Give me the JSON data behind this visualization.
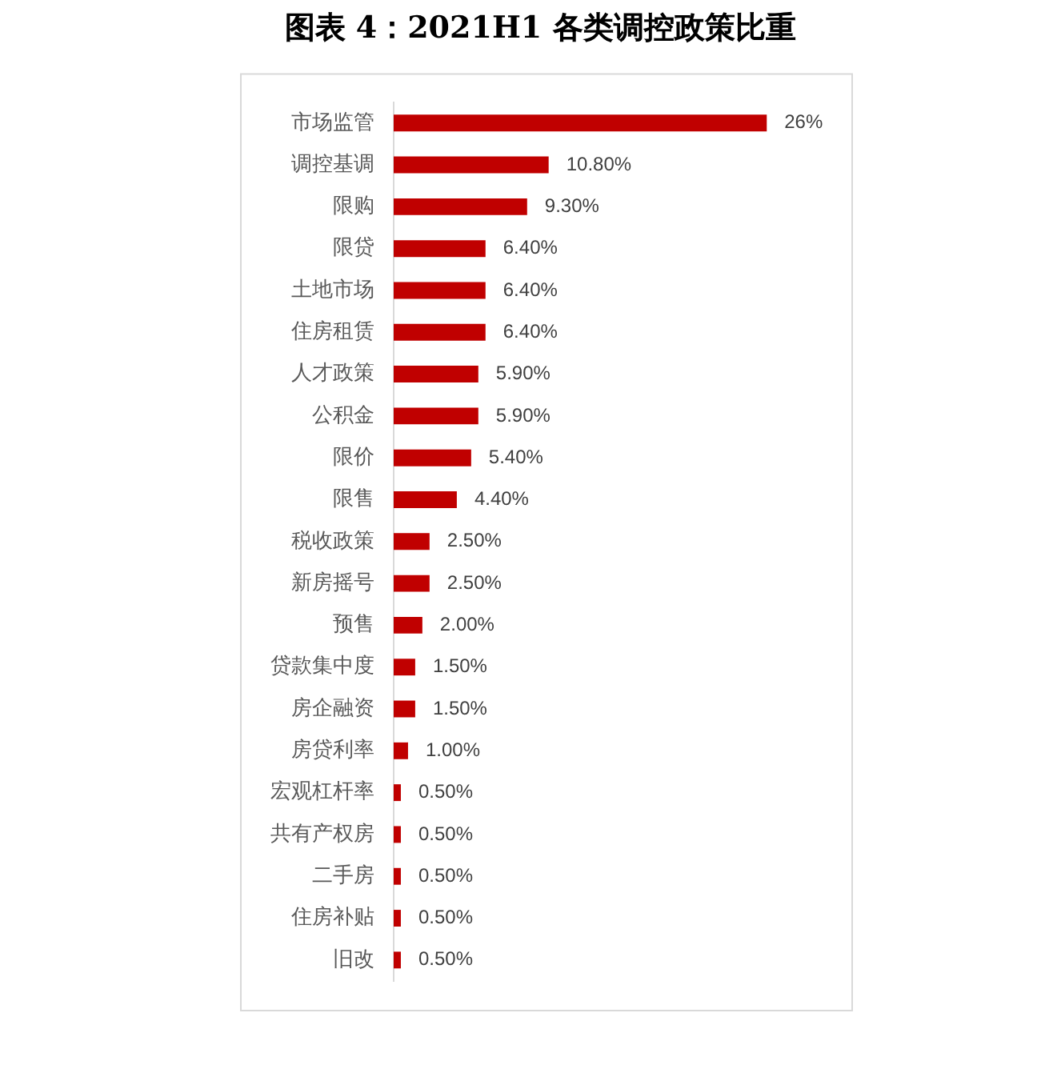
{
  "chart_data": {
    "type": "bar",
    "title": "图表 4：2021H1 各类调控政策比重",
    "orientation": "horizontal",
    "tick_labels": "y",
    "categories": [
      "市场监管",
      "调控基调",
      "限购",
      "限贷",
      "土地市场",
      "住房租赁",
      "人才政策",
      "公积金",
      "限价",
      "限售",
      "税收政策",
      "新房摇号",
      "预售",
      "贷款集中度",
      "房企融资",
      "房贷利率",
      "宏观杠杆率",
      "共有产权房",
      "二手房",
      "住房补贴",
      "旧改"
    ],
    "values": [
      26,
      10.8,
      9.3,
      6.4,
      6.4,
      6.4,
      5.9,
      5.9,
      5.4,
      4.4,
      2.5,
      2.5,
      2.0,
      1.5,
      1.5,
      1.0,
      0.5,
      0.5,
      0.5,
      0.5,
      0.5
    ],
    "value_labels": [
      "26%",
      "10.80%",
      "9.30%",
      "6.40%",
      "6.40%",
      "6.40%",
      "5.90%",
      "5.90%",
      "5.40%",
      "4.40%",
      "2.50%",
      "2.50%",
      "2.00%",
      "1.50%",
      "1.50%",
      "1.00%",
      "0.50%",
      "0.50%",
      "0.50%",
      "0.50%",
      "0.50%"
    ],
    "color": "#c00000"
  }
}
